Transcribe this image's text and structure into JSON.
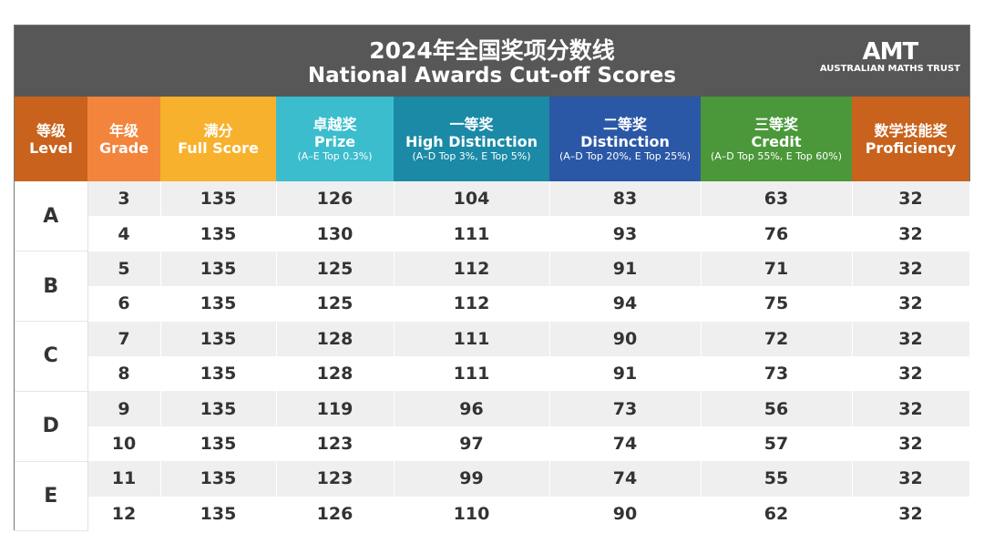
{
  "title": {
    "zh": "2024年全国奖项分数线",
    "en": "National Awards Cut-off Scores"
  },
  "logo": {
    "mark": "AMT",
    "name": "AUSTRALIAN MATHS TRUST"
  },
  "columns": [
    {
      "zh": "等级",
      "en": "Level",
      "note": "",
      "color": "#c8621c"
    },
    {
      "zh": "年级",
      "en": "Grade",
      "note": "",
      "color": "#f2843c"
    },
    {
      "zh": "满分",
      "en": "Full Score",
      "note": "",
      "color": "#f8b12c"
    },
    {
      "zh": "卓越奖",
      "en": "Prize",
      "note": "(A–E Top 0.3%)",
      "color": "#3bbdcd"
    },
    {
      "zh": "一等奖",
      "en": "High Distinction",
      "note": "(A–D Top 3%, E Top 5%)",
      "color": "#1a8aa6"
    },
    {
      "zh": "二等奖",
      "en": "Distinction",
      "note": "(A–D Top 20%, E Top 25%)",
      "color": "#2b58a6"
    },
    {
      "zh": "三等奖",
      "en": "Credit",
      "note": "(A–D Top 55%, E Top 60%)",
      "color": "#4b983a"
    },
    {
      "zh": "数学技能奖",
      "en": "Proficiency",
      "note": "",
      "color": "#c8621c"
    }
  ],
  "rows": [
    {
      "level": "A",
      "grade": "3",
      "values": [
        "135",
        "126",
        "104",
        "83",
        "63",
        "32"
      ]
    },
    {
      "level": "A",
      "grade": "4",
      "values": [
        "135",
        "130",
        "111",
        "93",
        "76",
        "32"
      ]
    },
    {
      "level": "B",
      "grade": "5",
      "values": [
        "135",
        "125",
        "112",
        "91",
        "71",
        "32"
      ]
    },
    {
      "level": "B",
      "grade": "6",
      "values": [
        "135",
        "125",
        "112",
        "94",
        "75",
        "32"
      ]
    },
    {
      "level": "C",
      "grade": "7",
      "values": [
        "135",
        "128",
        "111",
        "90",
        "72",
        "32"
      ]
    },
    {
      "level": "C",
      "grade": "8",
      "values": [
        "135",
        "128",
        "111",
        "91",
        "73",
        "32"
      ]
    },
    {
      "level": "D",
      "grade": "9",
      "values": [
        "135",
        "119",
        "96",
        "73",
        "56",
        "32"
      ]
    },
    {
      "level": "D",
      "grade": "10",
      "values": [
        "135",
        "123",
        "97",
        "74",
        "57",
        "32"
      ]
    },
    {
      "level": "E",
      "grade": "11",
      "values": [
        "135",
        "123",
        "99",
        "74",
        "55",
        "32"
      ]
    },
    {
      "level": "E",
      "grade": "12",
      "values": [
        "135",
        "126",
        "110",
        "90",
        "62",
        "32"
      ]
    }
  ]
}
